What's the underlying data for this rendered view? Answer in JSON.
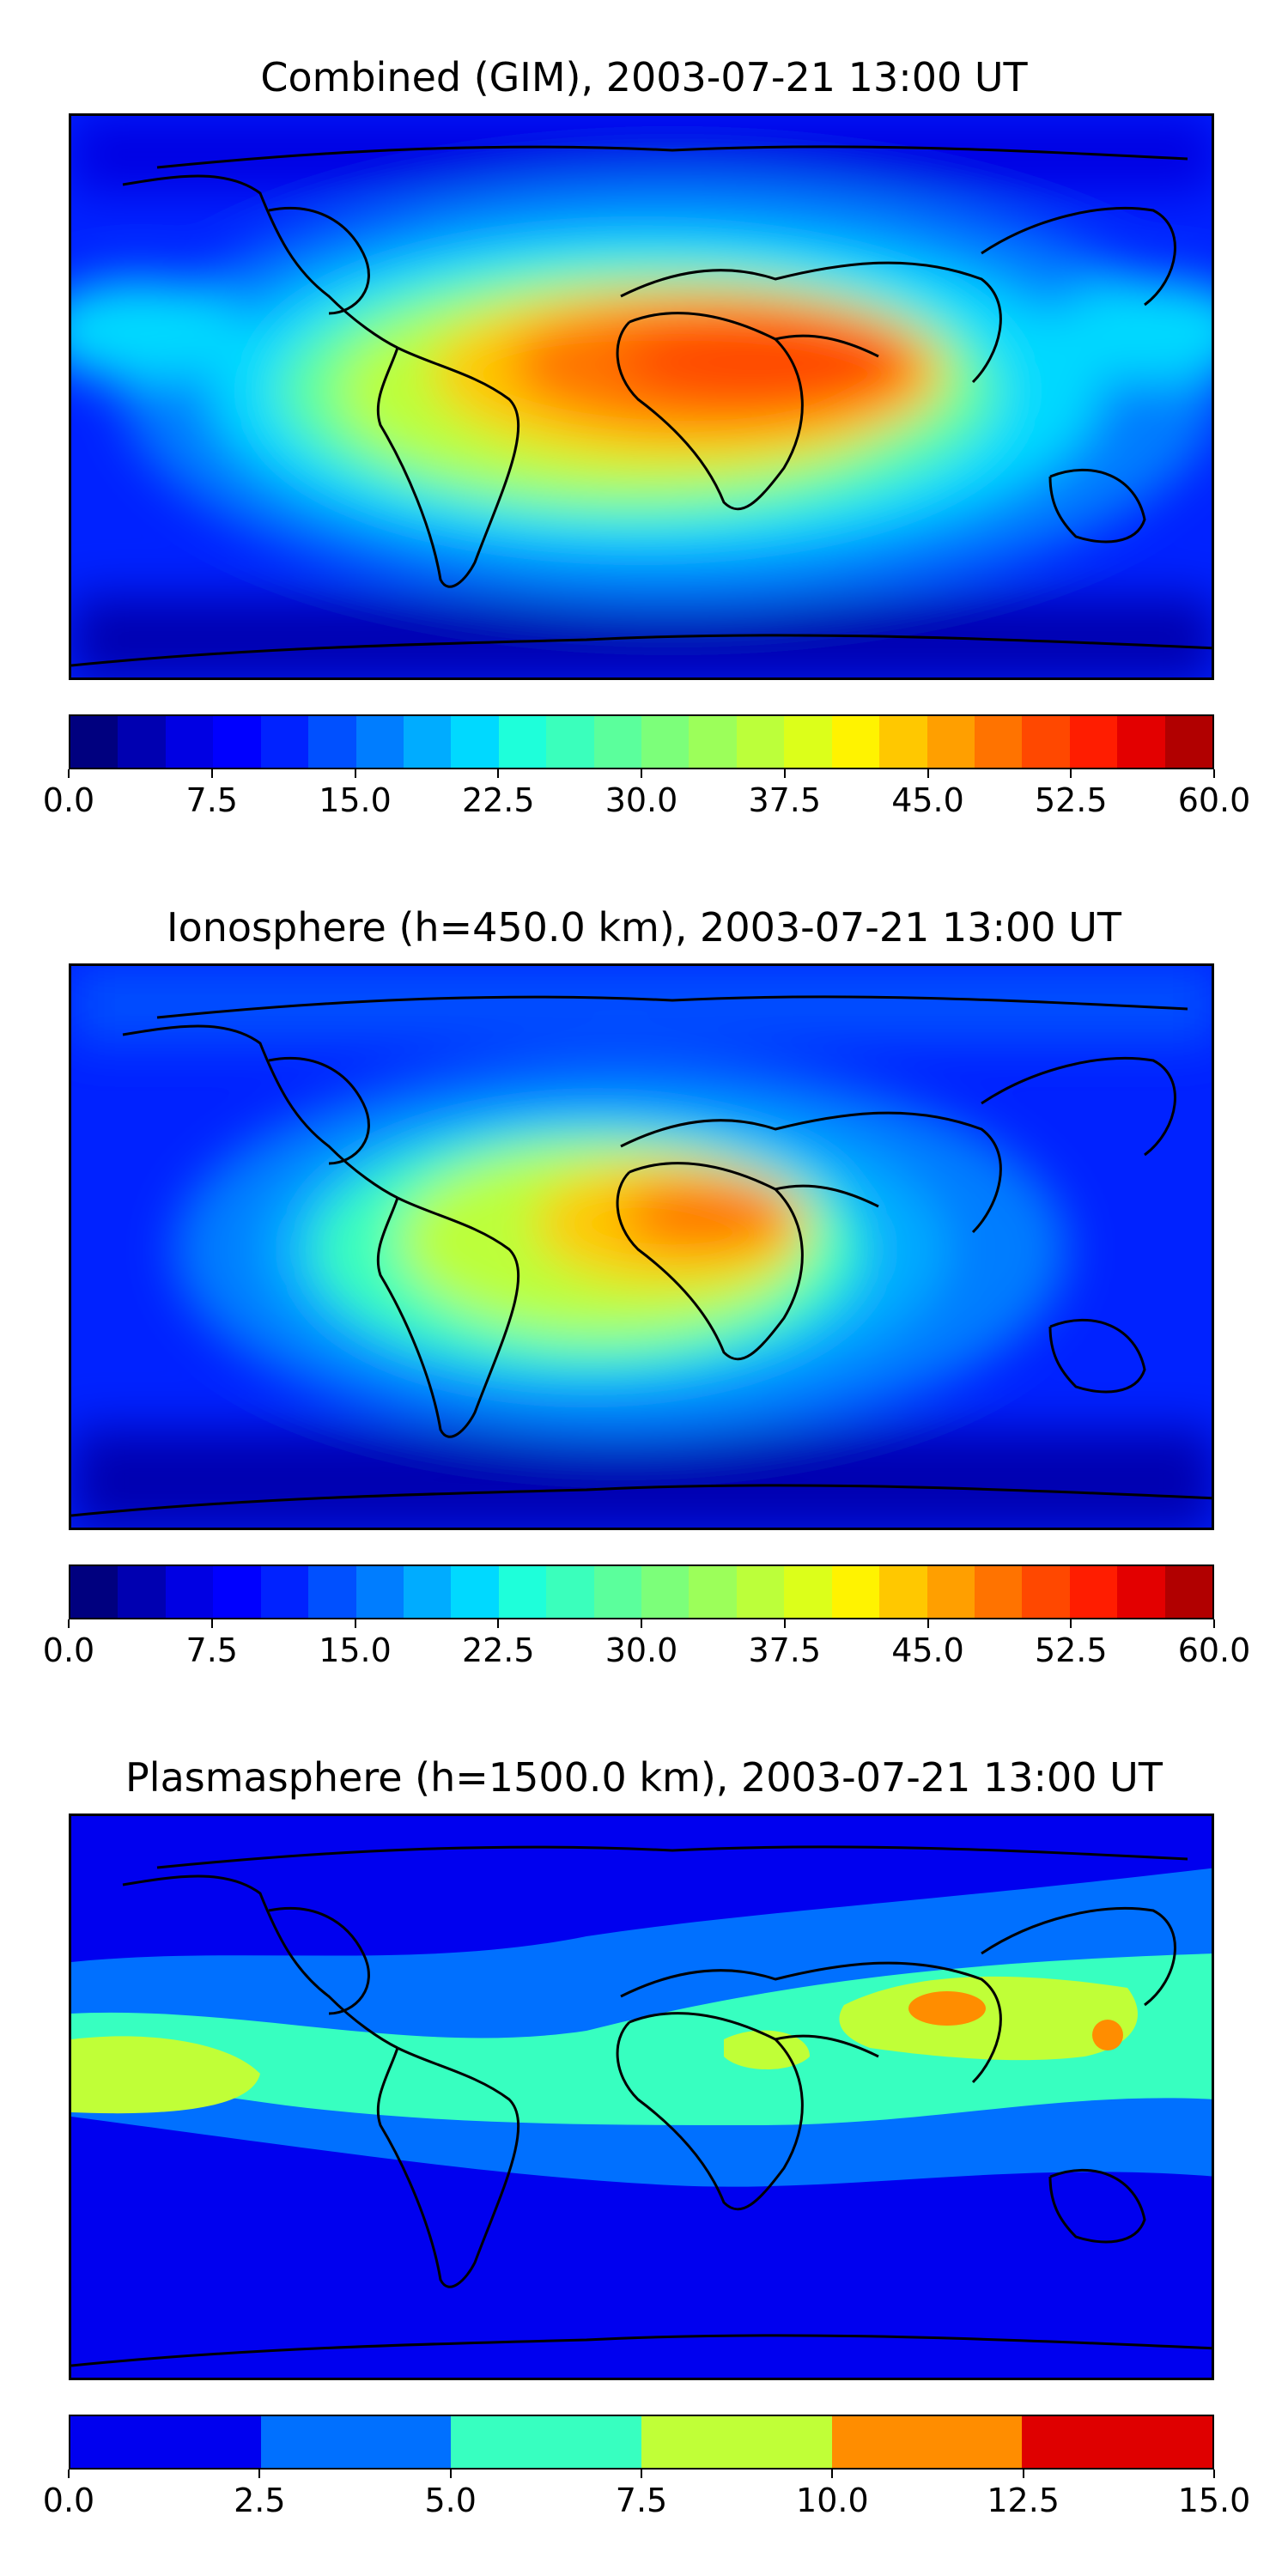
{
  "panels": [
    {
      "title": "Combined (GIM), 2003-07-21 13:00 UT",
      "colorbar": {
        "min": 0.0,
        "max": 60.0,
        "levels": 24,
        "tick_labels": [
          "0.0",
          "7.5",
          "15.0",
          "22.5",
          "30.0",
          "37.5",
          "45.0",
          "52.5",
          "60.0"
        ]
      }
    },
    {
      "title": "Ionosphere  (h=450.0 km), 2003-07-21 13:00 UT",
      "colorbar": {
        "min": 0.0,
        "max": 60.0,
        "levels": 24,
        "tick_labels": [
          "0.0",
          "7.5",
          "15.0",
          "22.5",
          "30.0",
          "37.5",
          "45.0",
          "52.5",
          "60.0"
        ]
      }
    },
    {
      "title": "Plasmasphere (h=1500.0 km), 2003-07-21 13:00 UT",
      "colorbar": {
        "min": 0.0,
        "max": 15.0,
        "levels": 6,
        "tick_labels": [
          "0.0",
          "2.5",
          "5.0",
          "7.5",
          "10.0",
          "12.5",
          "15.0"
        ]
      }
    }
  ],
  "colors": {
    "jet24": [
      "#00007f",
      "#0000b1",
      "#0000e3",
      "#0000ff",
      "#0022ff",
      "#0050ff",
      "#007dff",
      "#00acff",
      "#00d9ff",
      "#1effda",
      "#3affbc",
      "#5bff9c",
      "#7cff7a",
      "#9cff5a",
      "#bcff3a",
      "#dcff1a",
      "#fff300",
      "#ffc800",
      "#ff9f00",
      "#ff7300",
      "#ff4800",
      "#ff1d00",
      "#e30000",
      "#b10000"
    ],
    "jet6": [
      "#0000ef",
      "#0070ff",
      "#37ffc0",
      "#c0ff37",
      "#ff8d00",
      "#df0000"
    ]
  }
}
